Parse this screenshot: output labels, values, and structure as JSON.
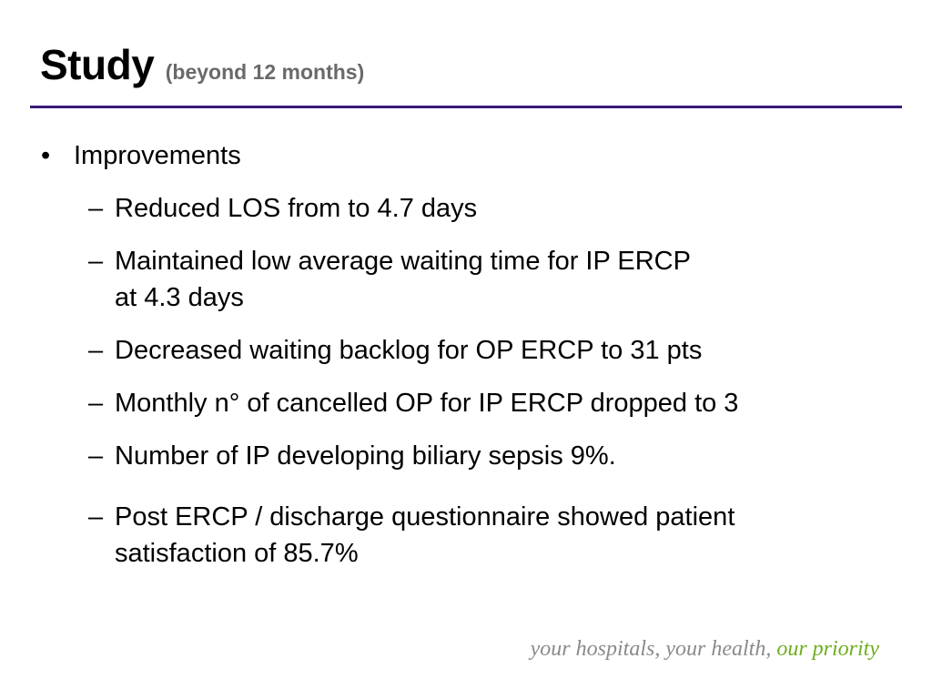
{
  "title": {
    "main": "Study",
    "sub": "(beyond 12 months)"
  },
  "content": {
    "heading": {
      "marker": "•",
      "text": "Improvements"
    },
    "items": [
      {
        "marker": "–",
        "text": [
          "Reduced LOS from to 4.7 days"
        ]
      },
      {
        "marker": "–",
        "text": [
          "Maintained low average waiting time for IP ERCP",
          "at 4.3 days"
        ]
      },
      {
        "marker": "–",
        "text": [
          "Decreased waiting backlog for OP ERCP to 31 pts"
        ]
      },
      {
        "marker": "–",
        "text": [
          "Monthly n° of cancelled OP for IP ERCP dropped to 3"
        ]
      },
      {
        "marker": "–",
        "text": [
          "Number of IP developing biliary sepsis 9%."
        ]
      },
      {
        "marker": "–",
        "text": [
          "Post ERCP / discharge questionnaire showed patient",
          "satisfaction of 85.7%"
        ]
      }
    ]
  },
  "footer": {
    "tagline_part1": "your hospitals, your health,",
    "tagline_part2": "our priority"
  },
  "colors": {
    "rule": "#3a1a7a",
    "subtitle": "#6a6a6a",
    "tagline_gray": "#8a8a8a",
    "tagline_green": "#6fae1e"
  }
}
